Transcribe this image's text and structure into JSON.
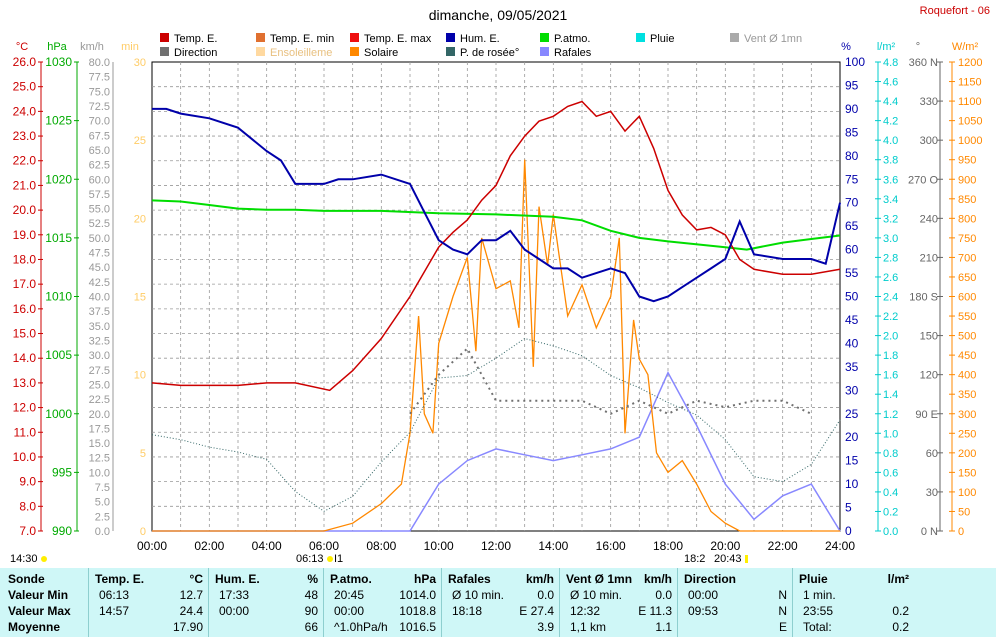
{
  "header": {
    "title": "dimanche, 09/05/2021",
    "station": "Roquefort - 06"
  },
  "legend": [
    {
      "label": "Temp. E.",
      "color": "#cc0000"
    },
    {
      "label": "Direction",
      "color": "#707070"
    },
    {
      "label": "Temp. E. min",
      "color": "#e07030"
    },
    {
      "label": "Ensoleilleme",
      "color": "#ffd9a0"
    },
    {
      "label": "Temp. E. max",
      "color": "#ee1010"
    },
    {
      "label": "Solaire",
      "color": "#ff8800"
    },
    {
      "label": "Hum. E.",
      "color": "#0000aa"
    },
    {
      "label": "P. de rosée°",
      "color": "#336666"
    },
    {
      "label": "P.atmo.",
      "color": "#00dd00"
    },
    {
      "label": "Rafales",
      "color": "#8888ff"
    },
    {
      "label": "Pluie",
      "color": "#00e0e0"
    },
    {
      "label": "Vent Ø 1mn",
      "color": "#aaaaaa"
    }
  ],
  "axes": {
    "temp": {
      "unit": "°C",
      "min": 7.0,
      "max": 26.0,
      "step": 1.0,
      "color": "#cc0000"
    },
    "press": {
      "unit": "hPa",
      "ticks": [
        "1030",
        "1025",
        "1020",
        "1015",
        "1010",
        "1005",
        "1000",
        "995",
        "990"
      ],
      "color": "#00aa00"
    },
    "wind": {
      "unit": "km/h",
      "min": 0,
      "max": 80,
      "step": 2.5,
      "color": "#888888"
    },
    "min": {
      "unit": "min",
      "ticks": [
        "30",
        "25",
        "20",
        "15",
        "10",
        "5",
        "0"
      ],
      "color": "#ffcc66"
    },
    "hum": {
      "unit": "%",
      "min": 0,
      "max": 100,
      "step": 5,
      "color": "#0000aa"
    },
    "rain": {
      "unit": "l/m²",
      "min": 0,
      "max": 4.8,
      "step": 0.2,
      "color": "#00cccc"
    },
    "dir": {
      "unit": "°",
      "ticks": [
        "360 N",
        "330",
        "300",
        "270 O",
        "240",
        "210",
        "180 S",
        "150",
        "120",
        "90 E",
        "60",
        "30",
        "0 N"
      ],
      "color": "#666666"
    },
    "solar": {
      "unit": "W/m²",
      "min": 0,
      "max": 1200,
      "step": 50,
      "color": "#ff8800"
    },
    "x": {
      "labels": [
        "00:00",
        "02:00",
        "04:00",
        "06:00",
        "08:00",
        "10:00",
        "12:00",
        "14:00",
        "16:00",
        "18:00",
        "20:00",
        "22:00",
        "24:00"
      ]
    }
  },
  "markers": {
    "m1": "14:30",
    "m2": "06:13",
    "m3": "I1",
    "m4": "18:2",
    "m5": "20:43"
  },
  "chart_data": {
    "type": "line",
    "title": "dimanche, 09/05/2021",
    "x_unit": "hours",
    "xlim": [
      0,
      24
    ],
    "series": [
      {
        "name": "Temp. E.",
        "axis": "°C",
        "points": [
          [
            0,
            13.0
          ],
          [
            1,
            12.9
          ],
          [
            2,
            12.9
          ],
          [
            3,
            12.9
          ],
          [
            4,
            13.0
          ],
          [
            5,
            13.0
          ],
          [
            6.2,
            12.7
          ],
          [
            7,
            13.5
          ],
          [
            8,
            14.8
          ],
          [
            9,
            16.5
          ],
          [
            10,
            18.5
          ],
          [
            10.5,
            19.1
          ],
          [
            11,
            19.6
          ],
          [
            11.5,
            20.4
          ],
          [
            12,
            21.0
          ],
          [
            12.5,
            22.2
          ],
          [
            13,
            23.0
          ],
          [
            13.5,
            23.6
          ],
          [
            14,
            23.8
          ],
          [
            14.5,
            24.2
          ],
          [
            15,
            24.4
          ],
          [
            15.5,
            23.8
          ],
          [
            16,
            24.0
          ],
          [
            16.5,
            23.2
          ],
          [
            17,
            23.8
          ],
          [
            17.5,
            22.5
          ],
          [
            18,
            20.8
          ],
          [
            18.5,
            19.8
          ],
          [
            19,
            19.2
          ],
          [
            19.5,
            19.3
          ],
          [
            20,
            19.0
          ],
          [
            20.5,
            18.0
          ],
          [
            21,
            17.6
          ],
          [
            22,
            17.4
          ],
          [
            23,
            17.4
          ],
          [
            24,
            17.6
          ]
        ]
      },
      {
        "name": "Hum. E.",
        "axis": "%",
        "points": [
          [
            0,
            90
          ],
          [
            0.5,
            90
          ],
          [
            1,
            89
          ],
          [
            2,
            88
          ],
          [
            3,
            86
          ],
          [
            4,
            81
          ],
          [
            4.5,
            79
          ],
          [
            5,
            74
          ],
          [
            5.5,
            74
          ],
          [
            6,
            74
          ],
          [
            6.5,
            75
          ],
          [
            7,
            75
          ],
          [
            8,
            76
          ],
          [
            9,
            74
          ],
          [
            9.5,
            68
          ],
          [
            10,
            62
          ],
          [
            10.5,
            60
          ],
          [
            11,
            59
          ],
          [
            11.5,
            62
          ],
          [
            12,
            62
          ],
          [
            12.5,
            64
          ],
          [
            13,
            60
          ],
          [
            13.5,
            58
          ],
          [
            14,
            56
          ],
          [
            14.5,
            56
          ],
          [
            15,
            54
          ],
          [
            15.5,
            55
          ],
          [
            16,
            56
          ],
          [
            16.5,
            55
          ],
          [
            17,
            50
          ],
          [
            17.5,
            49
          ],
          [
            18,
            50
          ],
          [
            18.5,
            52
          ],
          [
            19,
            54
          ],
          [
            19.5,
            56
          ],
          [
            20,
            58
          ],
          [
            20.5,
            66
          ],
          [
            21,
            59
          ],
          [
            22,
            58
          ],
          [
            23,
            58
          ],
          [
            23.5,
            57
          ],
          [
            24,
            70
          ]
        ]
      },
      {
        "name": "P.atmo.",
        "axis": "hPa",
        "points": [
          [
            0,
            1018.2
          ],
          [
            1,
            1018.1
          ],
          [
            2,
            1017.8
          ],
          [
            3,
            1017.5
          ],
          [
            4,
            1017.4
          ],
          [
            5,
            1017.4
          ],
          [
            6,
            1017.3
          ],
          [
            8,
            1017.3
          ],
          [
            10,
            1017.1
          ],
          [
            12,
            1017.0
          ],
          [
            14,
            1016.8
          ],
          [
            15,
            1016.5
          ],
          [
            16,
            1015.6
          ],
          [
            17,
            1015.0
          ],
          [
            18,
            1014.7
          ],
          [
            20,
            1014.2
          ],
          [
            20.75,
            1014.0
          ],
          [
            22,
            1014.6
          ],
          [
            23,
            1014.9
          ],
          [
            24,
            1015.2
          ]
        ]
      },
      {
        "name": "P. de rosée°",
        "axis": "°C",
        "points": [
          [
            0,
            10.9
          ],
          [
            1,
            10.7
          ],
          [
            2,
            10.4
          ],
          [
            3,
            10.2
          ],
          [
            4,
            9.9
          ],
          [
            5,
            8.6
          ],
          [
            6,
            7.8
          ],
          [
            7,
            8.4
          ],
          [
            8,
            9.8
          ],
          [
            9,
            11.0
          ],
          [
            10,
            13.2
          ],
          [
            11,
            13.3
          ],
          [
            12,
            14.0
          ],
          [
            13,
            14.8
          ],
          [
            14,
            14.5
          ],
          [
            15,
            14.1
          ],
          [
            16,
            13.3
          ],
          [
            17,
            12.8
          ],
          [
            18,
            12.2
          ],
          [
            19,
            11.7
          ],
          [
            20,
            10.7
          ],
          [
            21,
            9.2
          ],
          [
            22,
            9.0
          ],
          [
            23,
            9.7
          ],
          [
            24,
            11.5
          ]
        ]
      },
      {
        "name": "Solaire",
        "axis": "W/m²",
        "points": [
          [
            0,
            0
          ],
          [
            6,
            0
          ],
          [
            7,
            20
          ],
          [
            8,
            70
          ],
          [
            8.7,
            120
          ],
          [
            9,
            250
          ],
          [
            9.3,
            550
          ],
          [
            9.5,
            300
          ],
          [
            9.8,
            250
          ],
          [
            10,
            480
          ],
          [
            10.5,
            600
          ],
          [
            11,
            700
          ],
          [
            11.3,
            460
          ],
          [
            11.5,
            750
          ],
          [
            12,
            620
          ],
          [
            12.5,
            640
          ],
          [
            12.8,
            520
          ],
          [
            13,
            950
          ],
          [
            13.3,
            420
          ],
          [
            13.5,
            830
          ],
          [
            13.8,
            680
          ],
          [
            14,
            810
          ],
          [
            14.5,
            550
          ],
          [
            15,
            630
          ],
          [
            15.5,
            520
          ],
          [
            16,
            600
          ],
          [
            16.3,
            750
          ],
          [
            16.5,
            250
          ],
          [
            16.8,
            540
          ],
          [
            17,
            440
          ],
          [
            17.3,
            400
          ],
          [
            17.6,
            200
          ],
          [
            18,
            150
          ],
          [
            18.5,
            180
          ],
          [
            19,
            120
          ],
          [
            19.5,
            50
          ],
          [
            20,
            20
          ],
          [
            20.5,
            0
          ],
          [
            24,
            0
          ]
        ]
      },
      {
        "name": "Rafales",
        "axis": "km/h",
        "points": [
          [
            0,
            0
          ],
          [
            9,
            0
          ],
          [
            9.5,
            4
          ],
          [
            10,
            8
          ],
          [
            11,
            12
          ],
          [
            12,
            14
          ],
          [
            13,
            13
          ],
          [
            14,
            12
          ],
          [
            15,
            13
          ],
          [
            16,
            14
          ],
          [
            17,
            16
          ],
          [
            18,
            27
          ],
          [
            19,
            18
          ],
          [
            20,
            8
          ],
          [
            21,
            2
          ],
          [
            22,
            6
          ],
          [
            23,
            8
          ],
          [
            24,
            0
          ]
        ]
      },
      {
        "name": "Direction",
        "axis": "°",
        "points": [
          [
            9,
            90
          ],
          [
            10,
            120
          ],
          [
            11,
            140
          ],
          [
            12,
            100
          ],
          [
            13,
            100
          ],
          [
            14,
            100
          ],
          [
            15,
            100
          ],
          [
            16,
            90
          ],
          [
            17,
            100
          ],
          [
            18,
            90
          ],
          [
            19,
            100
          ],
          [
            20,
            95
          ],
          [
            21,
            100
          ],
          [
            22,
            100
          ],
          [
            23,
            90
          ]
        ]
      }
    ]
  },
  "stats": {
    "sonde": {
      "title": "Sonde",
      "rows": [
        "Valeur Min",
        "Valeur Max",
        "Moyenne"
      ]
    },
    "temp": {
      "title": "Temp. E.",
      "unit": "°C",
      "rows": [
        [
          "06:13",
          "12.7"
        ],
        [
          "14:57",
          "24.4"
        ],
        [
          "",
          "17.90"
        ]
      ]
    },
    "hum": {
      "title": "Hum. E.",
      "unit": "%",
      "rows": [
        [
          "17:33",
          "48"
        ],
        [
          "00:00",
          "90"
        ],
        [
          "",
          "66"
        ]
      ]
    },
    "press": {
      "title": "P.atmo.",
      "unit": "hPa",
      "rows": [
        [
          "20:45",
          "1014.0"
        ],
        [
          "00:00",
          "1018.8"
        ],
        [
          "^1.0hPa/h",
          "1016.5"
        ]
      ]
    },
    "gust": {
      "title": "Rafales",
      "unit": "km/h",
      "rows": [
        [
          "Ø 10 min.",
          "0.0"
        ],
        [
          "18:18",
          "E 27.4"
        ],
        [
          "",
          "3.9"
        ]
      ]
    },
    "wind": {
      "title": "Vent Ø 1mn",
      "unit": "km/h",
      "rows": [
        [
          "Ø 10 min.",
          "0.0"
        ],
        [
          "12:32",
          "E 11.3"
        ],
        [
          "1,1 km",
          "1.1"
        ]
      ]
    },
    "dir": {
      "title": "Direction",
      "unit": "",
      "rows": [
        [
          "00:00",
          "N"
        ],
        [
          "09:53",
          "N"
        ],
        [
          "",
          "E"
        ]
      ]
    },
    "rain": {
      "title": "Pluie",
      "unit": "l/m²",
      "rows": [
        [
          "1 min.",
          ""
        ],
        [
          "23:55",
          "0.2"
        ],
        [
          "Total:",
          "0.2"
        ]
      ]
    }
  }
}
